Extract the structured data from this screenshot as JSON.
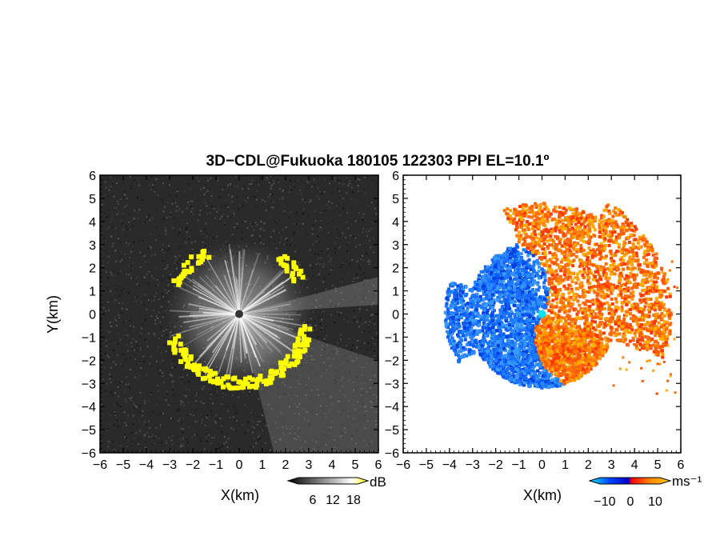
{
  "title": "3D−CDL@Fukuoka 180105 122303 PPI EL=10.1º",
  "chart_data": [
    {
      "type": "heatmap",
      "panel": "reflectivity",
      "xlabel": "X(km)",
      "ylabel": "Y(km)",
      "xlim": [
        -6,
        6
      ],
      "ylim": [
        -6,
        6
      ],
      "xticks": [
        "−6",
        "−5",
        "−4",
        "−3",
        "−2",
        "−1",
        "0",
        "1",
        "2",
        "3",
        "4",
        "5",
        "6"
      ],
      "yticks": [
        "6",
        "5",
        "4",
        "3",
        "2",
        "1",
        "0",
        "−1",
        "−2",
        "−3",
        "−4",
        "−5",
        "−6"
      ],
      "grid": false,
      "colorbar": {
        "unit": "dB",
        "ticks": [
          "6",
          "12",
          "18"
        ],
        "colors": [
          "#000000",
          "#ffffff",
          "#ffff00"
        ]
      },
      "features": {
        "radar_center": [
          0,
          0
        ],
        "echo_ring_radius_km": 3.0,
        "ring_color": "#ffff00",
        "background_color": "#2a2a2a"
      }
    },
    {
      "type": "heatmap",
      "panel": "doppler_velocity",
      "xlabel": "X(km)",
      "xlim": [
        -6,
        6
      ],
      "ylim": [
        -6,
        6
      ],
      "xticks": [
        "−6",
        "−5",
        "−4",
        "−3",
        "−2",
        "−1",
        "0",
        "1",
        "2",
        "3",
        "4",
        "5",
        "6"
      ],
      "yticks": [
        "6",
        "5",
        "4",
        "3",
        "2",
        "1",
        "0",
        "−1",
        "−2",
        "−3",
        "−4",
        "−5",
        "−6"
      ],
      "grid": false,
      "colorbar": {
        "unit": "ms⁻¹",
        "ticks": [
          "−10",
          "0",
          "10"
        ],
        "range": [
          -15,
          15
        ],
        "colors": [
          "#00e5ff",
          "#0044ff",
          "#0000cc",
          "#ff0000",
          "#ff8800",
          "#ffcc00"
        ]
      },
      "features": {
        "radar_center": [
          0,
          0
        ],
        "approaching_color": "#0a5cff",
        "receding_color": "#ff5a00"
      }
    }
  ]
}
